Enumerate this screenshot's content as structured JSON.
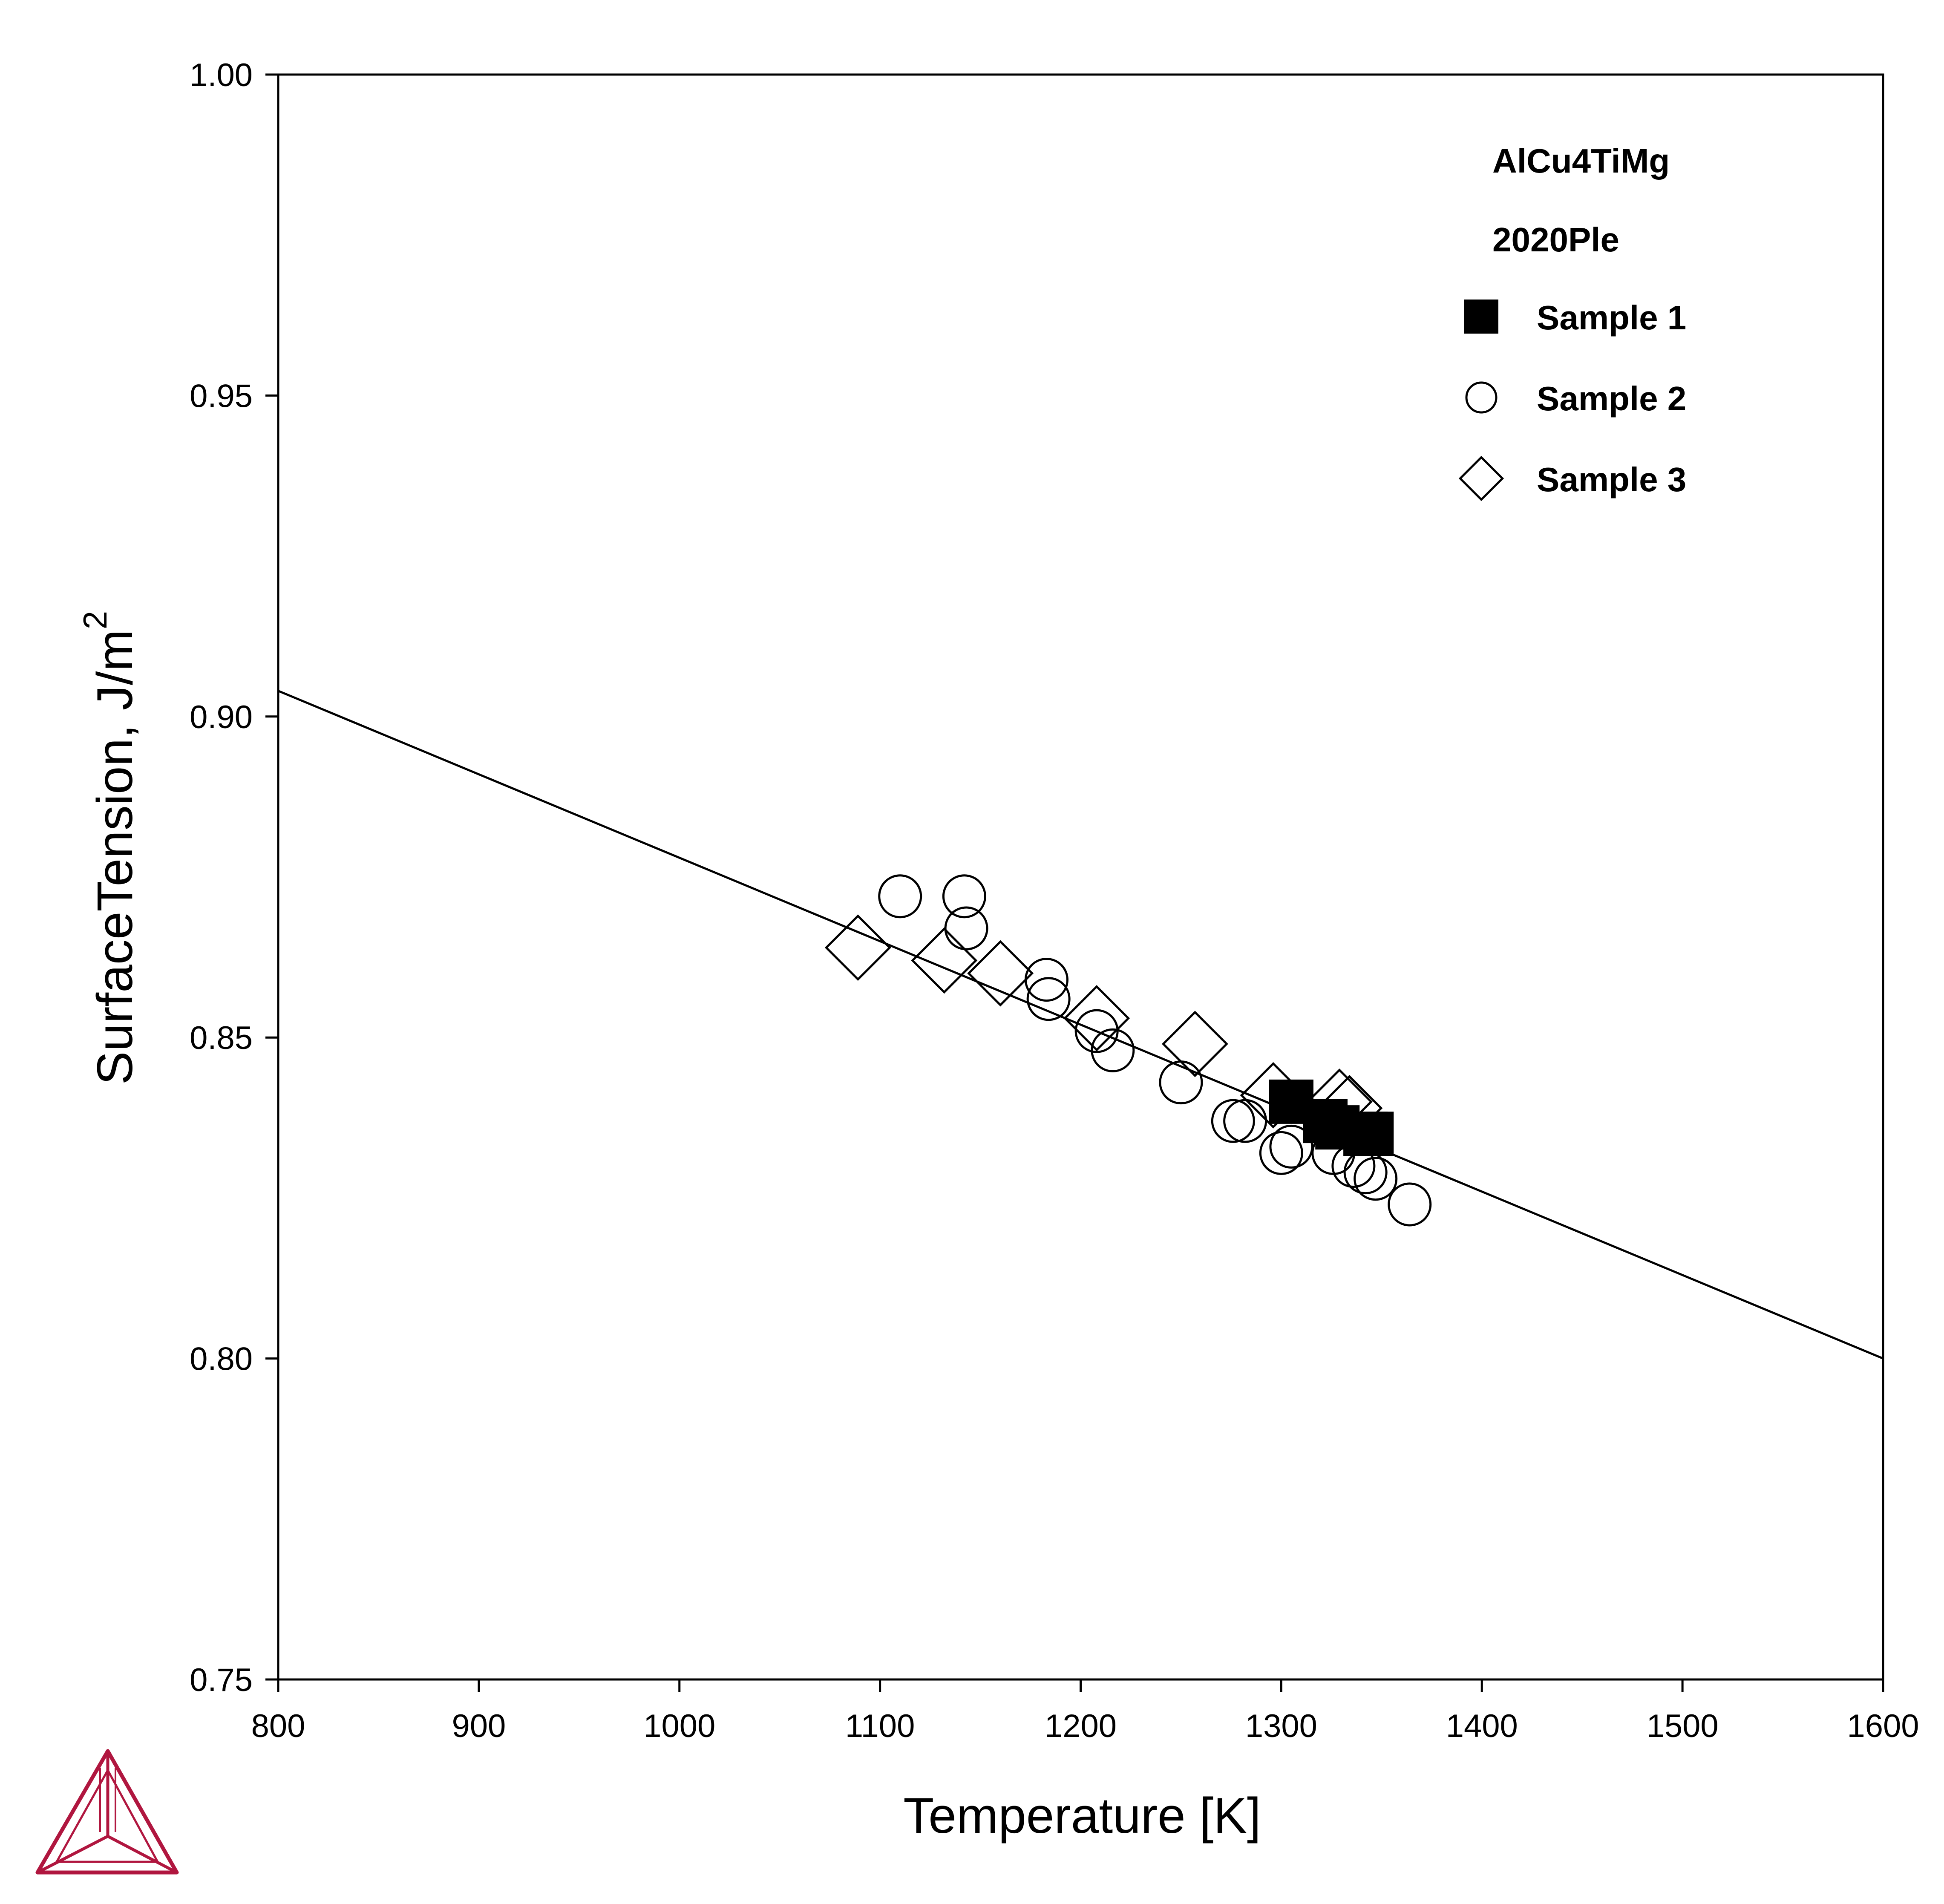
{
  "chart_data": {
    "type": "scatter",
    "title": "",
    "xlabel": "Temperature [K]",
    "ylabel": "SurfaceTension, J/m",
    "ylabel_superscript": "2",
    "xlim": [
      800,
      1600
    ],
    "ylim": [
      0.75,
      1.0
    ],
    "x_ticks": [
      "800",
      "900",
      "1000",
      "1100",
      "1200",
      "1300",
      "1400",
      "1500",
      "1600"
    ],
    "y_ticks": [
      "0.75",
      "0.80",
      "0.85",
      "0.90",
      "0.95",
      "1.00"
    ],
    "grid": false,
    "legend_placement": "top-right",
    "legend_title_lines": [
      "AlCu4TiMg",
      "2020Ple"
    ],
    "model_line": {
      "x": [
        800,
        1600
      ],
      "y": [
        0.904,
        0.8
      ]
    },
    "series": [
      {
        "name": "Sample 1",
        "marker": "filled-square",
        "x": [
          1305,
          1322,
          1328,
          1342,
          1345
        ],
        "y": [
          0.84,
          0.837,
          0.836,
          0.835,
          0.835
        ]
      },
      {
        "name": "Sample 2",
        "marker": "open-circle",
        "x": [
          1110,
          1142,
          1143,
          1183,
          1184,
          1208,
          1216,
          1250,
          1276,
          1282,
          1300,
          1305,
          1326,
          1336,
          1342,
          1347,
          1364
        ],
        "y": [
          0.872,
          0.872,
          0.867,
          0.859,
          0.856,
          0.851,
          0.848,
          0.843,
          0.837,
          0.837,
          0.832,
          0.833,
          0.832,
          0.83,
          0.829,
          0.828,
          0.824
        ]
      },
      {
        "name": "Sample 3",
        "marker": "open-diamond",
        "x": [
          1089,
          1132,
          1160,
          1208,
          1257,
          1296,
          1329,
          1334
        ],
        "y": [
          0.864,
          0.862,
          0.86,
          0.853,
          0.849,
          0.841,
          0.84,
          0.839
        ]
      }
    ]
  },
  "colors": {
    "axes": "#000000",
    "logo": "#b0163f"
  },
  "logo": {
    "icon": "thermo-calc-logo-icon"
  }
}
